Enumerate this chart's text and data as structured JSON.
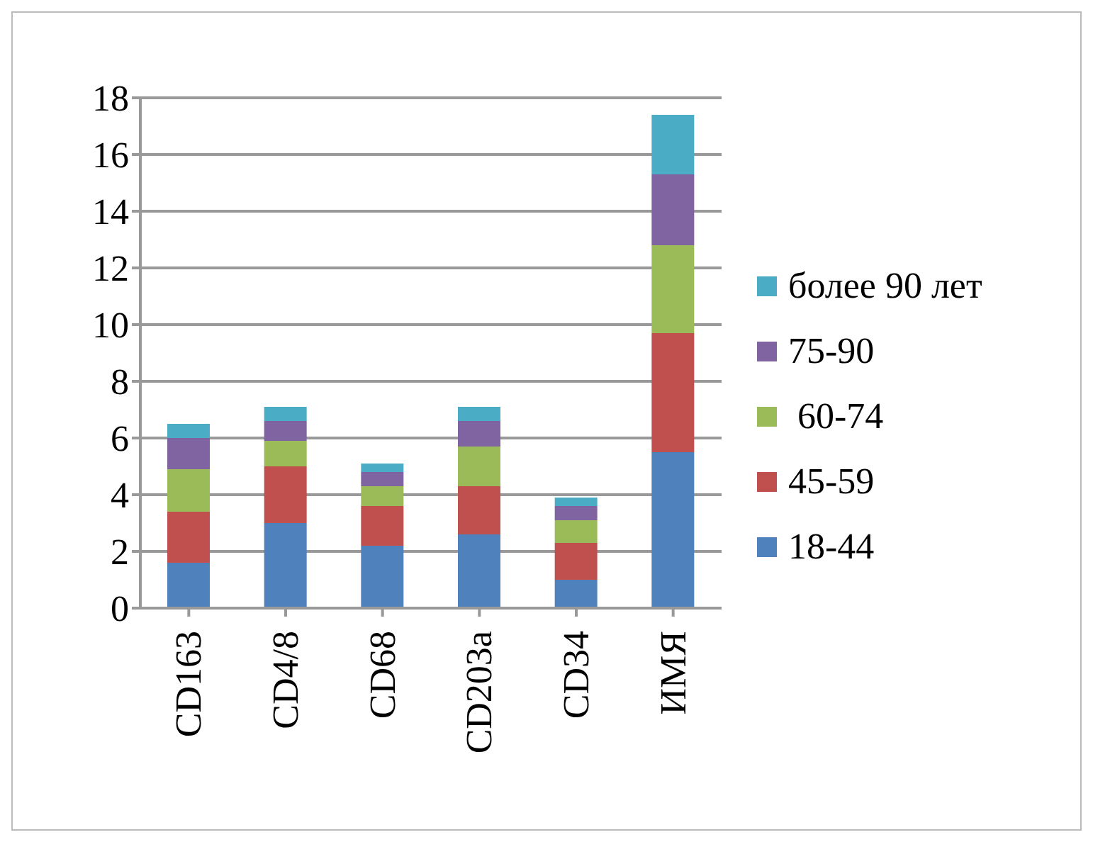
{
  "chart_data": {
    "type": "bar",
    "stacked": true,
    "categories": [
      "CD163",
      "CD4/8",
      "CD68",
      "CD203a",
      "CD34",
      "ИМЯ"
    ],
    "series": [
      {
        "name": "18-44",
        "color": "#4f81bd",
        "values": [
          1.6,
          3.0,
          2.2,
          2.6,
          1.0,
          5.5
        ]
      },
      {
        "name": "45-59",
        "color": "#c0504d",
        "values": [
          1.8,
          2.0,
          1.4,
          1.7,
          1.3,
          4.2
        ]
      },
      {
        "name": " 60-74",
        "color": "#9bbb59",
        "values": [
          1.5,
          0.9,
          0.7,
          1.4,
          0.8,
          3.1
        ]
      },
      {
        "name": "75-90",
        "color": "#8064a2",
        "values": [
          1.1,
          0.7,
          0.5,
          0.9,
          0.5,
          2.5
        ]
      },
      {
        "name": "более 90 лет",
        "color": "#4bacc6",
        "values": [
          0.5,
          0.5,
          0.3,
          0.5,
          0.3,
          2.1
        ]
      }
    ],
    "ylim": [
      0,
      18
    ],
    "yticks": [
      0,
      2,
      4,
      6,
      8,
      10,
      12,
      14,
      16,
      18
    ],
    "grid": "y",
    "legend": "right"
  }
}
